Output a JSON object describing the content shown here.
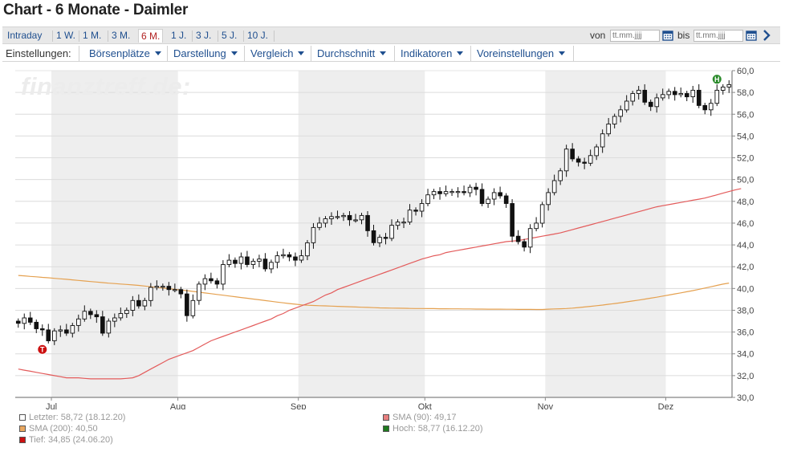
{
  "page": {
    "title": "Chart - 6 Monate - Daimler"
  },
  "range_tabs": [
    {
      "label": "Intraday",
      "active": false
    },
    {
      "label": "1 W.",
      "active": false
    },
    {
      "label": "1 M.",
      "active": false
    },
    {
      "label": "3 M.",
      "active": false
    },
    {
      "label": "6 M.",
      "active": true
    },
    {
      "label": "1 J.",
      "active": false
    },
    {
      "label": "3 J.",
      "active": false
    },
    {
      "label": "5 J.",
      "active": false
    },
    {
      "label": "10 J.",
      "active": false
    }
  ],
  "date_range": {
    "from_label": "von",
    "to_label": "bis",
    "from_placeholder": "tt.mm.jjjj",
    "to_placeholder": "tt.mm.jjjj"
  },
  "settings": {
    "label": "Einstellungen:",
    "items": [
      "Börsenplätze",
      "Darstellung",
      "Vergleich",
      "Durchschnitt",
      "Indikatoren",
      "Voreinstellungen"
    ]
  },
  "watermark": "finanztreff.de:",
  "colors": {
    "sma90": "#e35b5b",
    "sma200": "#e5a150",
    "low": "#cc1111",
    "high": "#2a8a2a",
    "band": "#eeeeee",
    "link": "#1f4f8f"
  },
  "legend": [
    {
      "text": "Letzter: 58,72 (18.12.20)",
      "swatch": "#ffffff"
    },
    {
      "text": "SMA (90): 49,17",
      "swatch": "#e87f7f"
    },
    {
      "text": "SMA (200): 40,50",
      "swatch": "#eaa860"
    },
    {
      "text": "Hoch: 58,77 (16.12.20)",
      "swatch": "#1f7a1f"
    },
    {
      "text": "Tief: 34,85 (24.06.20)",
      "swatch": "#cc1111"
    }
  ],
  "chart_data": {
    "type": "candlestick",
    "x_axis": {
      "tick_labels": [
        "Jul",
        "Aug",
        "Sep",
        "Okt",
        "Nov",
        "Dez"
      ],
      "tick_day_index": [
        6,
        27,
        47,
        68,
        88,
        108
      ]
    },
    "y_axis": {
      "min": 30,
      "max": 60,
      "step": 2,
      "tick_labels": [
        "30,0",
        "32,0",
        "34,0",
        "36,0",
        "38,0",
        "40,0",
        "42,0",
        "44,0",
        "46,0",
        "48,0",
        "50,0",
        "52,0",
        "54,0",
        "56,0",
        "58,0",
        "60,0"
      ]
    },
    "grid": true,
    "close": [
      36.8,
      37.3,
      36.9,
      36.3,
      36.2,
      35.2,
      36.1,
      36.2,
      35.9,
      36.6,
      37.2,
      37.9,
      37.6,
      37.4,
      35.9,
      37.0,
      37.3,
      37.7,
      38.0,
      38.9,
      38.4,
      38.9,
      40.1,
      40.2,
      40.2,
      39.9,
      39.9,
      39.5,
      37.5,
      38.9,
      40.4,
      40.9,
      40.7,
      40.4,
      42.2,
      42.6,
      42.3,
      42.9,
      42.2,
      42.5,
      42.7,
      41.8,
      42.4,
      43.0,
      43.1,
      42.9,
      42.6,
      43.0,
      44.2,
      45.6,
      46.0,
      46.4,
      46.6,
      46.6,
      46.7,
      46.3,
      46.3,
      46.7,
      45.3,
      44.2,
      44.7,
      44.6,
      45.8,
      46.1,
      46.1,
      47.2,
      47.1,
      47.8,
      48.6,
      48.9,
      48.7,
      48.9,
      48.9,
      48.9,
      48.8,
      49.3,
      49.1,
      47.8,
      48.2,
      48.8,
      48.5,
      47.8,
      44.8,
      44.3,
      43.8,
      45.5,
      46.0,
      47.7,
      48.8,
      49.9,
      50.8,
      52.8,
      51.9,
      51.6,
      51.5,
      52.2,
      53.0,
      54.2,
      55.1,
      55.8,
      56.4,
      57.2,
      57.9,
      58.2,
      57.1,
      56.7,
      57.5,
      57.8,
      58.1,
      57.8,
      57.9,
      57.6,
      58.2,
      56.8,
      56.4,
      57.0,
      58.2,
      58.5,
      58.72
    ],
    "open": [
      37.0,
      36.8,
      37.3,
      36.9,
      36.3,
      36.2,
      35.2,
      36.1,
      36.2,
      35.9,
      36.6,
      37.2,
      37.9,
      37.6,
      37.4,
      35.9,
      37.0,
      37.3,
      37.7,
      38.0,
      38.9,
      38.4,
      38.9,
      40.1,
      40.2,
      40.2,
      39.9,
      39.9,
      39.5,
      37.5,
      38.9,
      40.4,
      40.9,
      40.7,
      40.4,
      42.2,
      42.6,
      42.3,
      42.9,
      42.2,
      42.5,
      42.7,
      41.8,
      42.4,
      43.0,
      43.1,
      42.9,
      42.6,
      43.0,
      44.2,
      45.6,
      46.0,
      46.4,
      46.6,
      46.6,
      46.7,
      46.3,
      46.3,
      46.7,
      45.3,
      44.2,
      44.7,
      44.6,
      45.8,
      46.1,
      46.1,
      47.2,
      47.1,
      47.8,
      48.6,
      48.9,
      48.7,
      48.9,
      48.9,
      48.9,
      48.8,
      49.3,
      49.1,
      47.8,
      48.2,
      48.8,
      48.5,
      47.8,
      44.8,
      44.3,
      43.8,
      45.5,
      46.0,
      47.7,
      48.8,
      49.9,
      50.8,
      52.8,
      51.9,
      51.6,
      51.5,
      52.2,
      53.0,
      54.2,
      55.1,
      55.8,
      56.4,
      57.2,
      57.9,
      58.2,
      57.1,
      56.7,
      57.5,
      57.8,
      58.1,
      57.8,
      57.9,
      57.6,
      58.2,
      56.8,
      56.4,
      57.0,
      58.2,
      58.5
    ],
    "sma_90": [
      32.6,
      32.5,
      32.4,
      32.3,
      32.2,
      32.1,
      32.0,
      31.9,
      31.8,
      31.8,
      31.8,
      31.75,
      31.7,
      31.7,
      31.7,
      31.7,
      31.7,
      31.7,
      31.75,
      31.8,
      32.0,
      32.3,
      32.6,
      32.9,
      33.2,
      33.5,
      33.7,
      33.9,
      34.1,
      34.3,
      34.6,
      34.9,
      35.2,
      35.4,
      35.6,
      35.8,
      36.0,
      36.2,
      36.4,
      36.6,
      36.8,
      37.0,
      37.2,
      37.5,
      37.7,
      38.0,
      38.2,
      38.4,
      38.6,
      38.8,
      39.1,
      39.4,
      39.6,
      39.9,
      40.1,
      40.3,
      40.5,
      40.7,
      40.9,
      41.1,
      41.3,
      41.5,
      41.7,
      41.9,
      42.1,
      42.3,
      42.5,
      42.7,
      42.85,
      43.0,
      43.1,
      43.3,
      43.4,
      43.5,
      43.6,
      43.7,
      43.8,
      43.9,
      44.0,
      44.1,
      44.2,
      44.3,
      44.35,
      44.4,
      44.5,
      44.6,
      44.7,
      44.8,
      44.9,
      45.0,
      45.1,
      45.25,
      45.4,
      45.55,
      45.7,
      45.85,
      46.0,
      46.15,
      46.3,
      46.45,
      46.6,
      46.75,
      46.9,
      47.05,
      47.2,
      47.35,
      47.5,
      47.6,
      47.7,
      47.8,
      47.9,
      48.0,
      48.1,
      48.2,
      48.3,
      48.45,
      48.6,
      48.75,
      48.9,
      49.05,
      49.17
    ],
    "sma_200": [
      41.2,
      41.16,
      41.11,
      41.07,
      41.02,
      40.98,
      40.93,
      40.89,
      40.84,
      40.79,
      40.74,
      40.69,
      40.64,
      40.59,
      40.54,
      40.49,
      40.45,
      40.41,
      40.37,
      40.33,
      40.28,
      40.22,
      40.16,
      40.1,
      40.04,
      39.98,
      39.92,
      39.86,
      39.8,
      39.73,
      39.66,
      39.59,
      39.52,
      39.45,
      39.38,
      39.31,
      39.24,
      39.17,
      39.1,
      39.03,
      38.96,
      38.89,
      38.82,
      38.75,
      38.68,
      38.62,
      38.56,
      38.5,
      38.46,
      38.44,
      38.42,
      38.4,
      38.38,
      38.36,
      38.34,
      38.32,
      38.3,
      38.28,
      38.26,
      38.24,
      38.22,
      38.21,
      38.2,
      38.19,
      38.18,
      38.17,
      38.16,
      38.16,
      38.15,
      38.15,
      38.14,
      38.14,
      38.13,
      38.13,
      38.12,
      38.12,
      38.11,
      38.11,
      38.1,
      38.1,
      38.1,
      38.09,
      38.09,
      38.08,
      38.08,
      38.08,
      38.07,
      38.07,
      38.1,
      38.12,
      38.14,
      38.16,
      38.2,
      38.25,
      38.3,
      38.36,
      38.42,
      38.48,
      38.55,
      38.62,
      38.69,
      38.77,
      38.85,
      38.93,
      39.02,
      39.11,
      39.2,
      39.3,
      39.4,
      39.5,
      39.6,
      39.7,
      39.8,
      39.92,
      40.04,
      40.16,
      40.28,
      40.4,
      40.5
    ],
    "low_marker": {
      "label": "T",
      "value": 34.85,
      "date": "24.06.20",
      "day_index": 4
    },
    "high_marker": {
      "label": "H",
      "value": 58.77,
      "date": "16.12.20",
      "day_index": 116
    },
    "series": [
      {
        "name": "Letzter"
      },
      {
        "name": "SMA (90)"
      },
      {
        "name": "SMA (200)"
      }
    ]
  }
}
